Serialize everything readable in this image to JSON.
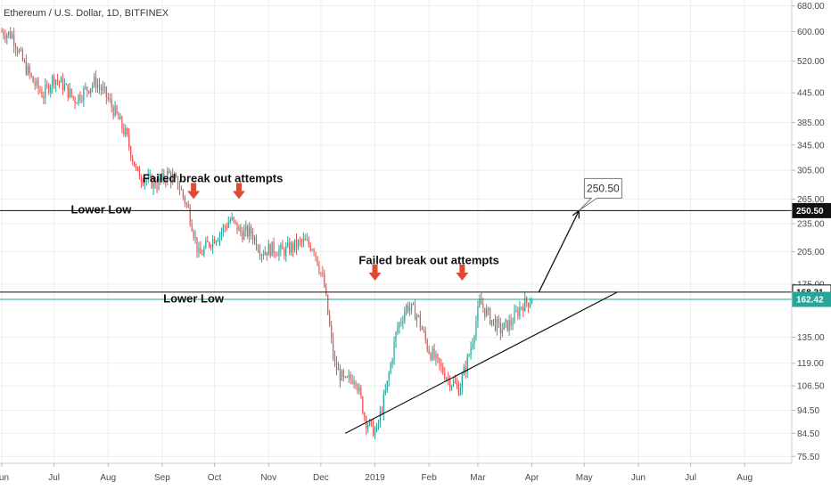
{
  "chart_data": {
    "type": "candlestick",
    "title": "Ethereum / U.S. Dollar, 1D, BITFINEX",
    "y_scale": "log",
    "ylim": [
      73,
      700
    ],
    "xlim": [
      "2018-05-31",
      "2019-08-28"
    ],
    "y_ticks": [
      "680.00",
      "600.00",
      "520.00",
      "445.00",
      "385.00",
      "345.00",
      "305.00",
      "265.00",
      "235.00",
      "205.00",
      "175.00",
      "135.00",
      "119.00",
      "106.50",
      "94.50",
      "84.50",
      "75.50"
    ],
    "x_ticks": [
      {
        "label": "Jun",
        "date": "2018-06-01"
      },
      {
        "label": "Jul",
        "date": "2018-07-01"
      },
      {
        "label": "Aug",
        "date": "2018-08-01"
      },
      {
        "label": "Sep",
        "date": "2018-09-01"
      },
      {
        "label": "Oct",
        "date": "2018-10-01"
      },
      {
        "label": "Nov",
        "date": "2018-11-01"
      },
      {
        "label": "Dec",
        "date": "2018-12-01"
      },
      {
        "label": "2019",
        "date": "2019-01-01"
      },
      {
        "label": "Feb",
        "date": "2019-02-01"
      },
      {
        "label": "Mar",
        "date": "2019-03-01"
      },
      {
        "label": "Apr",
        "date": "2019-04-01"
      },
      {
        "label": "May",
        "date": "2019-05-01"
      },
      {
        "label": "Jun",
        "date": "2019-06-01"
      },
      {
        "label": "Jul",
        "date": "2019-07-01"
      },
      {
        "label": "Aug",
        "date": "2019-08-01"
      }
    ],
    "price_path": {
      "start": "2018-06-01",
      "end": "2019-04-01",
      "closes": [
        600,
        590,
        520,
        470,
        440,
        480,
        460,
        430,
        450,
        470,
        440,
        400,
        360,
        300,
        290,
        285,
        300,
        285,
        250,
        200,
        215,
        225,
        240,
        225,
        225,
        205,
        208,
        205,
        210,
        215,
        210,
        175,
        118,
        108,
        112,
        90,
        84.5,
        105,
        140,
        158,
        150,
        128,
        118,
        110,
        105,
        125,
        160,
        148,
        140,
        145,
        158,
        162.42
      ]
    },
    "horizontal_lines": [
      {
        "value": 250.5,
        "color": "#111111",
        "label": "250.50",
        "label_bg": "#111111",
        "label_color": "#ffffff"
      },
      {
        "value": 168.31,
        "color": "#111111",
        "label": "168.31",
        "label_bg": "#ffffff",
        "label_color": "#111111"
      },
      {
        "value": 162.42,
        "color": "#26a69a",
        "label": "162.42",
        "label_bg": "#26a69a",
        "label_color": "#ffffff"
      }
    ],
    "trendline": {
      "from": {
        "date": "2018-12-15",
        "value": 84.5
      },
      "to": {
        "date": "2019-05-20",
        "value": 168.31
      }
    },
    "projection_arrow": {
      "from": {
        "date": "2019-04-05",
        "value": 168.31
      },
      "to": {
        "date": "2019-04-28",
        "value": 250.5
      }
    },
    "callout": {
      "label": "250.50",
      "anchor": {
        "date": "2019-04-28",
        "value": 250.5
      }
    },
    "annotations": [
      {
        "text": "Failed break out attempts",
        "date": "2018-09-30",
        "value": 288
      },
      {
        "text": "Failed break out attempts",
        "date": "2019-02-01",
        "value": 193
      },
      {
        "text": "Lower Low",
        "date": "2018-07-28",
        "value": 247
      },
      {
        "text": "Lower Low",
        "date": "2018-09-19",
        "value": 160
      }
    ],
    "arrows_down": [
      {
        "date": "2018-09-19",
        "value": 265
      },
      {
        "date": "2018-10-15",
        "value": 265
      },
      {
        "date": "2019-01-01",
        "value": 178
      },
      {
        "date": "2019-02-20",
        "value": 178
      }
    ],
    "colors": {
      "up": "#26a69a",
      "down": "#ef5350",
      "arrow": "#e04a35",
      "grid": "#eeeeee"
    }
  }
}
